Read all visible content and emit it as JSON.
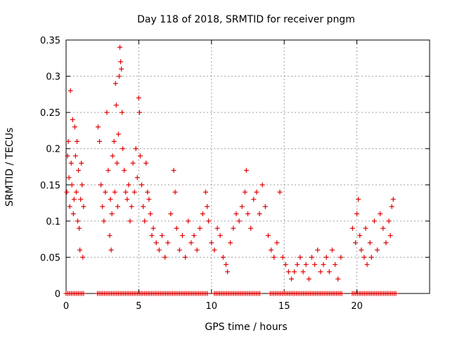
{
  "chart_data": {
    "type": "scatter",
    "title": "Day 118 of 2018, SRMTID for receiver pngm",
    "xlabel": "GPS time / hours",
    "ylabel": "SRMTID / TECUs",
    "xlim": [
      0,
      25
    ],
    "ylim": [
      0,
      0.35
    ],
    "xticks": [
      0,
      5,
      10,
      15,
      20
    ],
    "xtick_labels": [
      "0",
      "5",
      "10",
      "15",
      "20"
    ],
    "yticks": [
      0,
      0.05,
      0.1,
      0.15,
      0.2,
      0.25,
      0.3,
      0.35
    ],
    "ytick_labels": [
      "0",
      "0.05",
      "0.1",
      "0.15",
      "0.2",
      "0.25",
      "0.3",
      "0.35"
    ],
    "grid": true,
    "marker": "+",
    "series": [
      {
        "name": "SRMTID",
        "color": "#e00000",
        "points": [
          [
            0.05,
            0.14
          ],
          [
            0.1,
            0.19
          ],
          [
            0.15,
            0.21
          ],
          [
            0.2,
            0.16
          ],
          [
            0.25,
            0.12
          ],
          [
            0.3,
            0.28
          ],
          [
            0.35,
            0.18
          ],
          [
            0.4,
            0.15
          ],
          [
            0.45,
            0.24
          ],
          [
            0.5,
            0.11
          ],
          [
            0.55,
            0.13
          ],
          [
            0.6,
            0.23
          ],
          [
            0.65,
            0.19
          ],
          [
            0.7,
            0.14
          ],
          [
            0.75,
            0.21
          ],
          [
            0.8,
            0.1
          ],
          [
            0.85,
            0.17
          ],
          [
            0.9,
            0.09
          ],
          [
            0.95,
            0.06
          ],
          [
            1.0,
            0.13
          ],
          [
            1.05,
            0.18
          ],
          [
            1.1,
            0.15
          ],
          [
            1.15,
            0.05
          ],
          [
            1.2,
            0.12
          ],
          [
            2.2,
            0.23
          ],
          [
            2.3,
            0.21
          ],
          [
            2.4,
            0.15
          ],
          [
            2.5,
            0.12
          ],
          [
            2.6,
            0.1
          ],
          [
            2.7,
            0.14
          ],
          [
            2.8,
            0.25
          ],
          [
            2.9,
            0.17
          ],
          [
            3.0,
            0.08
          ],
          [
            3.05,
            0.13
          ],
          [
            3.1,
            0.06
          ],
          [
            3.15,
            0.11
          ],
          [
            3.2,
            0.19
          ],
          [
            3.3,
            0.21
          ],
          [
            3.35,
            0.14
          ],
          [
            3.4,
            0.29
          ],
          [
            3.45,
            0.26
          ],
          [
            3.5,
            0.18
          ],
          [
            3.55,
            0.12
          ],
          [
            3.6,
            0.22
          ],
          [
            3.65,
            0.3
          ],
          [
            3.7,
            0.34
          ],
          [
            3.75,
            0.32
          ],
          [
            3.8,
            0.31
          ],
          [
            3.85,
            0.25
          ],
          [
            3.9,
            0.2
          ],
          [
            4.0,
            0.17
          ],
          [
            4.1,
            0.14
          ],
          [
            4.2,
            0.13
          ],
          [
            4.3,
            0.15
          ],
          [
            4.4,
            0.1
          ],
          [
            4.5,
            0.12
          ],
          [
            4.6,
            0.18
          ],
          [
            4.7,
            0.14
          ],
          [
            4.8,
            0.2
          ],
          [
            4.9,
            0.16
          ],
          [
            5.0,
            0.27
          ],
          [
            5.05,
            0.25
          ],
          [
            5.1,
            0.19
          ],
          [
            5.2,
            0.15
          ],
          [
            5.3,
            0.12
          ],
          [
            5.4,
            0.1
          ],
          [
            5.5,
            0.18
          ],
          [
            5.6,
            0.14
          ],
          [
            5.7,
            0.13
          ],
          [
            5.8,
            0.11
          ],
          [
            5.9,
            0.08
          ],
          [
            6.0,
            0.09
          ],
          [
            6.2,
            0.07
          ],
          [
            6.4,
            0.06
          ],
          [
            6.6,
            0.08
          ],
          [
            6.8,
            0.05
          ],
          [
            7.0,
            0.07
          ],
          [
            7.2,
            0.11
          ],
          [
            7.4,
            0.17
          ],
          [
            7.5,
            0.14
          ],
          [
            7.6,
            0.09
          ],
          [
            7.8,
            0.06
          ],
          [
            8.0,
            0.08
          ],
          [
            8.2,
            0.05
          ],
          [
            8.4,
            0.1
          ],
          [
            8.6,
            0.07
          ],
          [
            8.8,
            0.08
          ],
          [
            9.0,
            0.06
          ],
          [
            9.2,
            0.09
          ],
          [
            9.4,
            0.11
          ],
          [
            9.6,
            0.14
          ],
          [
            9.7,
            0.12
          ],
          [
            9.8,
            0.1
          ],
          [
            10.0,
            0.07
          ],
          [
            10.2,
            0.06
          ],
          [
            10.4,
            0.09
          ],
          [
            10.6,
            0.08
          ],
          [
            10.8,
            0.05
          ],
          [
            11.0,
            0.04
          ],
          [
            11.1,
            0.03
          ],
          [
            11.3,
            0.07
          ],
          [
            11.5,
            0.09
          ],
          [
            11.7,
            0.11
          ],
          [
            11.9,
            0.1
          ],
          [
            12.1,
            0.12
          ],
          [
            12.3,
            0.14
          ],
          [
            12.4,
            0.17
          ],
          [
            12.5,
            0.11
          ],
          [
            12.7,
            0.09
          ],
          [
            12.9,
            0.13
          ],
          [
            13.1,
            0.14
          ],
          [
            13.3,
            0.11
          ],
          [
            13.5,
            0.15
          ],
          [
            13.7,
            0.12
          ],
          [
            13.9,
            0.08
          ],
          [
            14.1,
            0.06
          ],
          [
            14.3,
            0.05
          ],
          [
            14.5,
            0.07
          ],
          [
            14.7,
            0.14
          ],
          [
            14.9,
            0.05
          ],
          [
            15.1,
            0.04
          ],
          [
            15.3,
            0.03
          ],
          [
            15.5,
            0.02
          ],
          [
            15.7,
            0.03
          ],
          [
            15.9,
            0.04
          ],
          [
            16.1,
            0.05
          ],
          [
            16.3,
            0.03
          ],
          [
            16.5,
            0.04
          ],
          [
            16.7,
            0.02
          ],
          [
            16.9,
            0.05
          ],
          [
            17.1,
            0.04
          ],
          [
            17.3,
            0.06
          ],
          [
            17.5,
            0.03
          ],
          [
            17.7,
            0.04
          ],
          [
            17.9,
            0.05
          ],
          [
            18.1,
            0.03
          ],
          [
            18.3,
            0.06
          ],
          [
            18.5,
            0.04
          ],
          [
            18.7,
            0.02
          ],
          [
            18.9,
            0.05
          ],
          [
            19.7,
            0.09
          ],
          [
            19.9,
            0.07
          ],
          [
            20.0,
            0.11
          ],
          [
            20.1,
            0.13
          ],
          [
            20.2,
            0.08
          ],
          [
            20.3,
            0.06
          ],
          [
            20.5,
            0.05
          ],
          [
            20.6,
            0.09
          ],
          [
            20.7,
            0.04
          ],
          [
            20.9,
            0.07
          ],
          [
            21.0,
            0.05
          ],
          [
            21.2,
            0.1
          ],
          [
            21.4,
            0.06
          ],
          [
            21.6,
            0.11
          ],
          [
            21.8,
            0.09
          ],
          [
            22.0,
            0.07
          ],
          [
            22.2,
            0.1
          ],
          [
            22.3,
            0.08
          ],
          [
            22.4,
            0.12
          ],
          [
            22.5,
            0.13
          ]
        ]
      }
    ],
    "zero_band": {
      "x_ranges": [
        [
          0,
          22.7
        ]
      ],
      "gaps": [
        [
          1.3,
          2.1
        ],
        [
          9.8,
          10.1
        ],
        [
          13.4,
          14.0
        ],
        [
          19.0,
          19.6
        ]
      ],
      "step": 0.12,
      "y": 0
    }
  }
}
